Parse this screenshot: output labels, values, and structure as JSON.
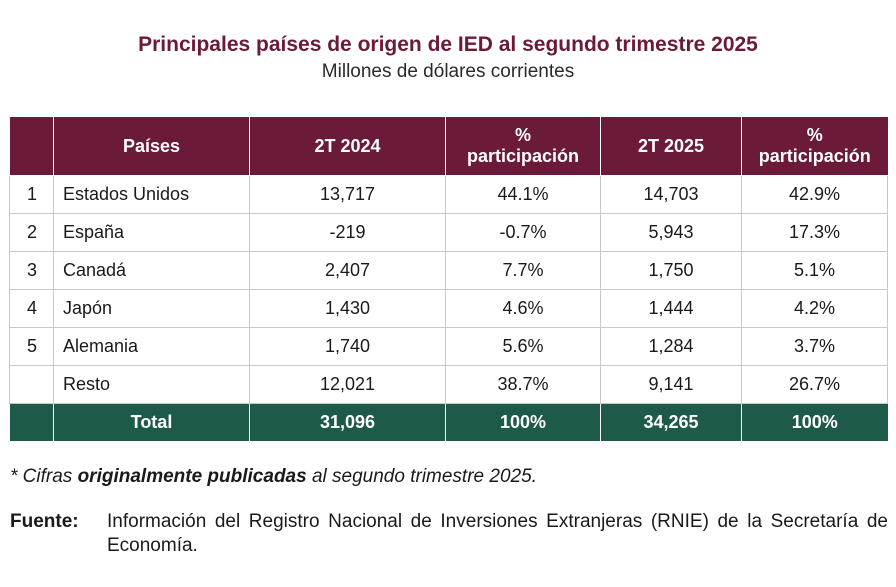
{
  "title": "Principales países de origen de IED al segundo trimestre 2025",
  "subtitle": "Millones de dólares corrientes",
  "table": {
    "headers": {
      "rank": "",
      "country": "Países",
      "y2024": "2T 2024",
      "share2024_line1": "%",
      "share2024_line2": "participación",
      "y2025": "2T 2025",
      "share2025_line1": "%",
      "share2025_line2": "participación"
    },
    "rows": [
      {
        "rank": "1",
        "country": "Estados Unidos",
        "v2024": "13,717",
        "p2024": "44.1%",
        "v2025": "14,703",
        "p2025": "42.9%"
      },
      {
        "rank": "2",
        "country": "España",
        "v2024": "-219",
        "p2024": "-0.7%",
        "v2025": "5,943",
        "p2025": "17.3%"
      },
      {
        "rank": "3",
        "country": "Canadá",
        "v2024": "2,407",
        "p2024": "7.7%",
        "v2025": "1,750",
        "p2025": "5.1%"
      },
      {
        "rank": "4",
        "country": "Japón",
        "v2024": "1,430",
        "p2024": "4.6%",
        "v2025": "1,444",
        "p2025": "4.2%"
      },
      {
        "rank": "5",
        "country": "Alemania",
        "v2024": "1,740",
        "p2024": "5.6%",
        "v2025": "1,284",
        "p2025": "3.7%"
      },
      {
        "rank": "",
        "country": "Resto",
        "v2024": "12,021",
        "p2024": "38.7%",
        "v2025": "9,141",
        "p2025": "26.7%"
      }
    ],
    "total": {
      "label": "Total",
      "v2024": "31,096",
      "p2024": "100%",
      "v2025": "34,265",
      "p2025": "100%"
    }
  },
  "note": {
    "prefix": "* Cifras ",
    "bold": "originalmente publicadas",
    "suffix": " al segundo trimestre 2025."
  },
  "source": {
    "label": "Fuente:",
    "text": "Información del Registro Nacional de Inversiones Extranjeras (RNIE) de la Secretaría de Economía."
  },
  "colors": {
    "header_bg": "#6b1a3a",
    "total_bg": "#1e5a4a",
    "title": "#6b1a3a"
  }
}
